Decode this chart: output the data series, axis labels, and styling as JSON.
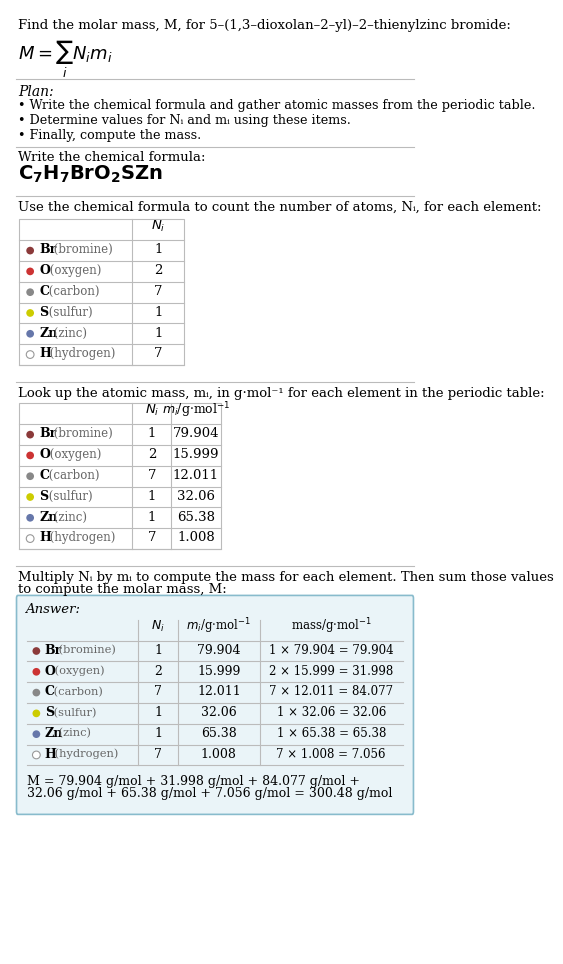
{
  "title_text": "Find the molar mass, M, for 5–(1,3–dioxolan–2–yl)–2–thienylzinc bromide:",
  "plan_header": "Plan:",
  "plan_bullets": [
    "Write the chemical formula and gather atomic masses from the periodic table.",
    "Determine values for Nᵢ and mᵢ using these items.",
    "Finally, compute the mass."
  ],
  "formula_header": "Write the chemical formula:",
  "table1_header": "Use the chemical formula to count the number of atoms, Nᵢ, for each element:",
  "table2_header": "Look up the atomic mass, mᵢ, in g·mol⁻¹ for each element in the periodic table:",
  "table3_header_line1": "Multiply Nᵢ by mᵢ to compute the mass for each element. Then sum those values",
  "table3_header_line2": "to compute the molar mass, M:",
  "element_symbols": [
    "Br",
    "O",
    "C",
    "S",
    "Zn",
    "H"
  ],
  "element_names": [
    "bromine",
    "oxygen",
    "carbon",
    "sulfur",
    "zinc",
    "hydrogen"
  ],
  "dot_colors": [
    "#8B3A3A",
    "#CC3333",
    "#888888",
    "#CCCC00",
    "#6677AA",
    "#FFFFFF"
  ],
  "dot_outline": [
    false,
    false,
    false,
    false,
    false,
    true
  ],
  "Ni": [
    1,
    2,
    7,
    1,
    1,
    7
  ],
  "mi": [
    "79.904",
    "15.999",
    "12.011",
    "32.06",
    "65.38",
    "1.008"
  ],
  "mass": [
    "1 × 79.904 = 79.904",
    "2 × 15.999 = 31.998",
    "7 × 12.011 = 84.077",
    "1 × 32.06 = 32.06",
    "1 × 65.38 = 65.38",
    "7 × 1.008 = 7.056"
  ],
  "final_line1": "M = 79.904 g/mol + 31.998 g/mol + 84.077 g/mol +",
  "final_line2": "32.06 g/mol + 65.38 g/mol + 7.056 g/mol = 300.48 g/mol",
  "answer_box_color": "#EAF4F8",
  "answer_box_border": "#88BBCC",
  "bg_color": "#FFFFFF",
  "text_color": "#000000",
  "gray_text_color": "#666666",
  "separator_color": "#BBBBBB",
  "table_border_color": "#BBBBBB"
}
